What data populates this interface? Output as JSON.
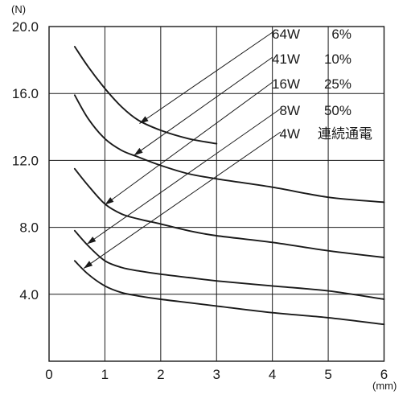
{
  "chart_data": {
    "type": "line",
    "xlabel": "(mm)",
    "ylabel": "(N)",
    "xlim": [
      0,
      6
    ],
    "ylim": [
      0,
      20
    ],
    "grid": true,
    "x_ticks": [
      "0",
      "1",
      "2",
      "3",
      "4",
      "5",
      "6"
    ],
    "y_ticks": [
      "4.0",
      "8.0",
      "12.0",
      "16.0",
      "20.0"
    ],
    "y_tick_values": [
      4,
      8,
      12,
      16,
      20
    ],
    "series": [
      {
        "name": "64W 6%",
        "power": "64W",
        "duty": "6%",
        "points": [
          [
            0.46,
            18.8
          ],
          [
            0.7,
            17.6
          ],
          [
            1.0,
            16.3
          ],
          [
            1.3,
            15.2
          ],
          [
            1.6,
            14.4
          ],
          [
            2.0,
            13.8
          ],
          [
            2.5,
            13.3
          ],
          [
            3.0,
            13.0
          ]
        ],
        "arrow_tip": [
          1.62,
          14.2
        ]
      },
      {
        "name": "41W 10%",
        "power": "41W",
        "duty": "10%",
        "points": [
          [
            0.46,
            15.9
          ],
          [
            0.7,
            14.5
          ],
          [
            1.0,
            13.3
          ],
          [
            1.3,
            12.6
          ],
          [
            1.6,
            12.2
          ],
          [
            2.0,
            11.7
          ],
          [
            2.5,
            11.2
          ],
          [
            3.0,
            10.9
          ],
          [
            4.0,
            10.4
          ],
          [
            5.0,
            9.8
          ],
          [
            6.0,
            9.5
          ]
        ],
        "arrow_tip": [
          1.52,
          12.3
        ]
      },
      {
        "name": "16W 25%",
        "power": "16W",
        "duty": "25%",
        "points": [
          [
            0.46,
            11.5
          ],
          [
            0.7,
            10.5
          ],
          [
            1.0,
            9.4
          ],
          [
            1.3,
            8.8
          ],
          [
            1.6,
            8.5
          ],
          [
            2.0,
            8.2
          ],
          [
            2.5,
            7.8
          ],
          [
            3.0,
            7.5
          ],
          [
            4.0,
            7.1
          ],
          [
            5.0,
            6.6
          ],
          [
            6.0,
            6.2
          ]
        ],
        "arrow_tip": [
          1.0,
          9.35
        ]
      },
      {
        "name": "8W 50%",
        "power": "8W",
        "duty": "50%",
        "points": [
          [
            0.46,
            7.8
          ],
          [
            0.7,
            6.9
          ],
          [
            1.0,
            6.0
          ],
          [
            1.3,
            5.6
          ],
          [
            1.6,
            5.4
          ],
          [
            2.0,
            5.2
          ],
          [
            2.5,
            5.0
          ],
          [
            3.0,
            4.8
          ],
          [
            4.0,
            4.5
          ],
          [
            5.0,
            4.2
          ],
          [
            6.0,
            3.7
          ]
        ],
        "arrow_tip": [
          0.68,
          7.0
        ]
      },
      {
        "name": "4W 連続通電",
        "power": "4W",
        "duty": "連続通電",
        "points": [
          [
            0.46,
            6.0
          ],
          [
            0.7,
            5.2
          ],
          [
            1.0,
            4.5
          ],
          [
            1.3,
            4.1
          ],
          [
            1.6,
            3.9
          ],
          [
            2.0,
            3.7
          ],
          [
            2.5,
            3.5
          ],
          [
            3.0,
            3.3
          ],
          [
            4.0,
            2.9
          ],
          [
            5.0,
            2.6
          ],
          [
            6.0,
            2.2
          ]
        ],
        "arrow_tip": [
          0.62,
          5.55
        ]
      }
    ]
  }
}
